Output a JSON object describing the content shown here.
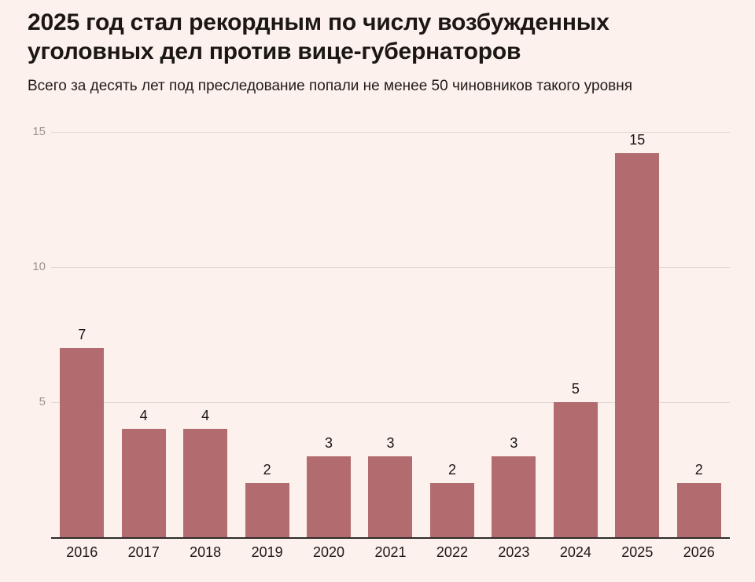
{
  "chart_data": {
    "type": "bar",
    "title": "2025 год стал рекордным по числу возбужденных уголовных дел против вице-губернаторов",
    "title_lines": [
      "2025 год стал рекордным по числу возбужденных",
      "уголовных дел против вице-губернаторов"
    ],
    "subtitle": "Всего за десять лет под преследование попали не менее 50 чиновников такого уровня",
    "categories": [
      "2016",
      "2017",
      "2018",
      "2019",
      "2020",
      "2021",
      "2022",
      "2023",
      "2024",
      "2025",
      "2026"
    ],
    "values": [
      7,
      4,
      4,
      2,
      3,
      3,
      2,
      3,
      5,
      15,
      2
    ],
    "xlabel": "",
    "ylabel": "",
    "ylim": [
      0,
      15
    ],
    "yticks": [
      5,
      10,
      15
    ],
    "grid": true,
    "legend": false,
    "colors": {
      "background": "#fcf1ec",
      "bar": "#b26b6e",
      "gridline": "#e2d8d4",
      "axis_line": "#2f2b28",
      "tick_label": "#9b948f",
      "text": "#1b1714"
    }
  }
}
